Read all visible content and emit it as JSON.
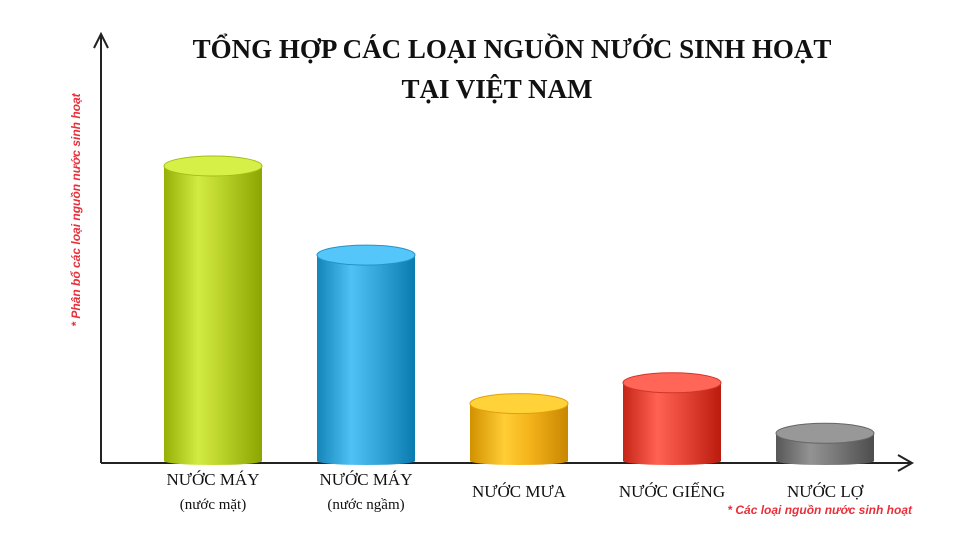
{
  "chart_data": {
    "type": "bar",
    "title_line1": "TỔNG HỢP CÁC LOẠI NGUỒN NƯỚC SINH HOẠT",
    "title_line2": "TẠI VIỆT NAM",
    "ylabel": "* Phân bổ các loại nguồn nước sinh hoạt",
    "xlabel": "* Các loại nguồn nước sinh hoạt",
    "grid": false,
    "legend": "none",
    "categories": [
      {
        "label": "NƯỚC MÁY",
        "sublabel": "(nước mặt)"
      },
      {
        "label": "NƯỚC MÁY",
        "sublabel": "(nước ngầm)"
      },
      {
        "label": "NƯỚC MƯA",
        "sublabel": ""
      },
      {
        "label": "NƯỚC GIẾNG",
        "sublabel": ""
      },
      {
        "label": "NƯỚC LỢ",
        "sublabel": ""
      }
    ],
    "values": [
      100,
      70,
      20,
      27,
      10
    ],
    "colors": [
      "#b9d22a",
      "#37a8dc",
      "#f5b41c",
      "#e8483a",
      "#7a7a7a"
    ],
    "ylim": [
      0,
      100
    ]
  },
  "colors": {
    "axis": "#222222",
    "title": "#111111",
    "note": "#e8303a"
  }
}
